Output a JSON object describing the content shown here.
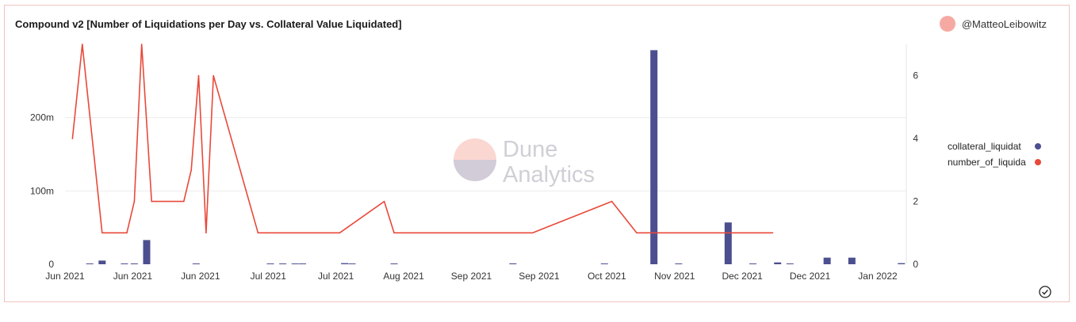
{
  "header": {
    "title": "Compound v2 [Number of Liquidations per Day vs. Collateral Value Liquidated]",
    "author": "@MatteoLeibowitz"
  },
  "watermark": {
    "line1": "Dune",
    "line2": "Analytics"
  },
  "colors": {
    "bar": "#4c4f8f",
    "line": "#e8493a",
    "accent": "#f6a9a3",
    "grid": "#ececec"
  },
  "icons": {
    "status": "check-circle-icon",
    "avatar": "avatar-circle"
  },
  "chart_data": {
    "type": "bar+line",
    "title": "Compound v2 [Number of Liquidations per Day vs. Collateral Value Liquidated]",
    "x_tick_labels": [
      "Jun 2021",
      "Jun 2021",
      "Jun 2021",
      "Jul 2021",
      "Jul 2021",
      "Aug 2021",
      "Sep 2021",
      "Sep 2021",
      "Oct 2021",
      "Nov 2021",
      "Dec 2021",
      "Dec 2021",
      "Jan 2022"
    ],
    "y_left": {
      "ticks": [
        0,
        100,
        200
      ],
      "tick_labels": [
        "0",
        "100m",
        "200m"
      ],
      "range": [
        0,
        300
      ]
    },
    "y_right": {
      "ticks": [
        0,
        2,
        4,
        6
      ],
      "tick_labels": [
        "0",
        "2",
        "4",
        "6"
      ],
      "range": [
        0,
        7
      ]
    },
    "grid": true,
    "legend_position": "right",
    "series": [
      {
        "name": "collateral_liquidat",
        "type": "bar",
        "axis": "left",
        "unit": "millions",
        "points": [
          {
            "x": 1.0,
            "y": 0.6
          },
          {
            "x": 1.5,
            "y": 5.0
          },
          {
            "x": 2.4,
            "y": 0.3
          },
          {
            "x": 2.8,
            "y": 0.4
          },
          {
            "x": 3.3,
            "y": 33.0
          },
          {
            "x": 5.3,
            "y": 0.5
          },
          {
            "x": 8.3,
            "y": 0.7
          },
          {
            "x": 8.8,
            "y": 0.4
          },
          {
            "x": 9.3,
            "y": 1.0
          },
          {
            "x": 9.6,
            "y": 0.8
          },
          {
            "x": 11.3,
            "y": 1.5
          },
          {
            "x": 11.6,
            "y": 0.5
          },
          {
            "x": 13.3,
            "y": 0.4
          },
          {
            "x": 18.1,
            "y": 1.2
          },
          {
            "x": 21.8,
            "y": 0.6
          },
          {
            "x": 23.8,
            "y": 292.0
          },
          {
            "x": 24.8,
            "y": 0.5
          },
          {
            "x": 26.8,
            "y": 57.0
          },
          {
            "x": 27.8,
            "y": 0.8
          },
          {
            "x": 28.8,
            "y": 2.5
          },
          {
            "x": 29.3,
            "y": 0.5
          },
          {
            "x": 30.8,
            "y": 9.0
          },
          {
            "x": 31.8,
            "y": 9.0
          },
          {
            "x": 33.8,
            "y": 1.5
          }
        ]
      },
      {
        "name": "number_of_liquida",
        "type": "line",
        "axis": "right",
        "points": [
          {
            "x": 0.3,
            "y": 4
          },
          {
            "x": 0.7,
            "y": 7
          },
          {
            "x": 1.5,
            "y": 1
          },
          {
            "x": 2.5,
            "y": 1
          },
          {
            "x": 2.8,
            "y": 2
          },
          {
            "x": 3.1,
            "y": 7
          },
          {
            "x": 3.5,
            "y": 2
          },
          {
            "x": 4.8,
            "y": 2
          },
          {
            "x": 5.1,
            "y": 3
          },
          {
            "x": 5.4,
            "y": 6
          },
          {
            "x": 5.7,
            "y": 1
          },
          {
            "x": 6.0,
            "y": 6
          },
          {
            "x": 7.8,
            "y": 1
          },
          {
            "x": 11.1,
            "y": 1
          },
          {
            "x": 12.9,
            "y": 2
          },
          {
            "x": 13.3,
            "y": 1
          },
          {
            "x": 18.9,
            "y": 1
          },
          {
            "x": 22.1,
            "y": 2
          },
          {
            "x": 23.1,
            "y": 1
          },
          {
            "x": 28.6,
            "y": 1
          }
        ]
      }
    ]
  }
}
